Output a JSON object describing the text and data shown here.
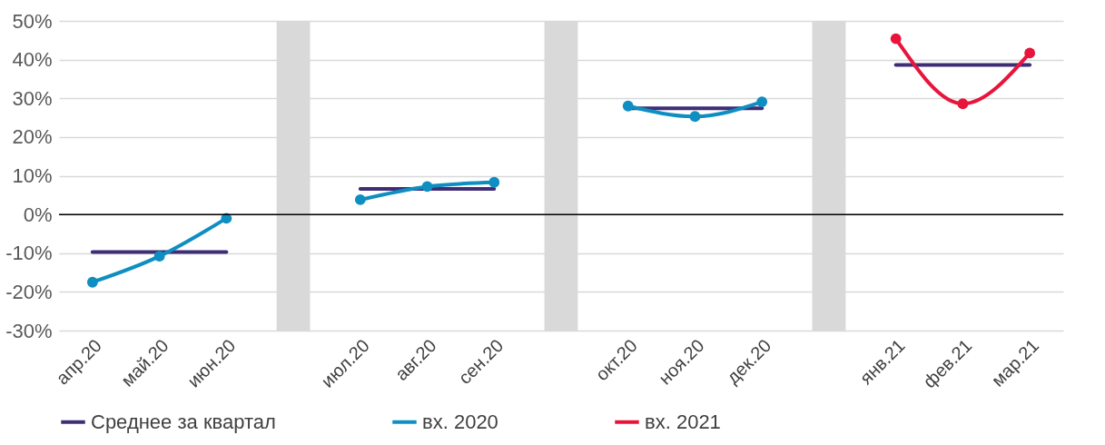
{
  "chart_data": {
    "type": "line",
    "categories": [
      "апр.20",
      "май.20",
      "июн.20",
      null,
      "июл.20",
      "авг.20",
      "сен.20",
      null,
      "окт.20",
      "ноя.20",
      "дек.20",
      null,
      "янв.21",
      "фев.21",
      "мар.21"
    ],
    "series": [
      {
        "type": "bar",
        "color": "#d9d9d9",
        "values": [
          null,
          null,
          null,
          50,
          null,
          null,
          null,
          50,
          null,
          null,
          null,
          50,
          null,
          null,
          null
        ]
      },
      {
        "type": "bar",
        "color": "#d9d9d9",
        "values": [
          null,
          null,
          null,
          -30,
          null,
          null,
          null,
          -30,
          null,
          null,
          null,
          -30,
          null,
          null,
          null
        ]
      },
      {
        "name": "Среднее за квартал",
        "color": "#3f2d76",
        "marker": "none",
        "values": [
          -9.7,
          -9.7,
          -9.7,
          null,
          6.6,
          6.6,
          6.6,
          null,
          27.4,
          27.4,
          27.4,
          null,
          38.6,
          38.6,
          38.6
        ]
      },
      {
        "name": "вх. 2020",
        "color": "#0e8ec1",
        "marker": "circle",
        "values": [
          -17.5,
          -10.8,
          -1,
          null,
          3.8,
          7.2,
          8.3,
          null,
          28,
          25.3,
          29.1,
          null,
          null,
          null,
          null
        ]
      },
      {
        "name": "вх. 2021",
        "color": "#e8143c",
        "marker": "circle",
        "values": [
          null,
          null,
          null,
          null,
          null,
          null,
          null,
          null,
          null,
          null,
          null,
          null,
          45.4,
          28.6,
          41.7
        ]
      }
    ],
    "ylim": [
      -30,
      50
    ],
    "yticks": [
      {
        "value": -30,
        "label": "-30%"
      },
      {
        "value": -20,
        "label": "-20%"
      },
      {
        "value": -10,
        "label": "-10%"
      },
      {
        "value": 0,
        "label": "0%"
      },
      {
        "value": 10,
        "label": "10%"
      },
      {
        "value": 20,
        "label": "20%"
      },
      {
        "value": 30,
        "label": "30%"
      },
      {
        "value": 40,
        "label": "40%"
      },
      {
        "value": 50,
        "label": "50%"
      }
    ],
    "ref_lines": [
      {
        "axis": "y",
        "value": 0,
        "color": "#000000"
      }
    ],
    "grid": "y",
    "legend": "bottom"
  }
}
